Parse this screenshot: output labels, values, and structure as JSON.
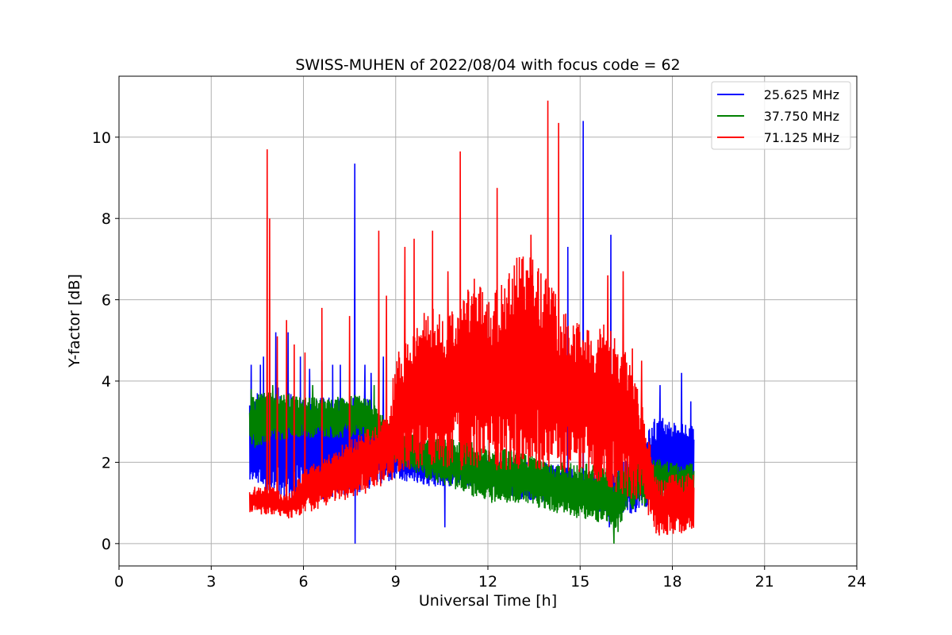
{
  "chart_data": {
    "type": "line",
    "title": "SWISS-MUHEN of 2022/08/04 with focus code = 62",
    "xlabel": "Universal Time [h]",
    "ylabel": "Y-factor [dB]",
    "xlim": [
      0,
      24
    ],
    "ylim": [
      -0.55,
      11.5
    ],
    "xticks": [
      0,
      3,
      6,
      9,
      12,
      15,
      18,
      21,
      24
    ],
    "yticks": [
      0,
      2,
      4,
      6,
      8,
      10
    ],
    "grid": true,
    "legend_position": "top-right",
    "time_range": [
      4.25,
      18.7
    ],
    "series": [
      {
        "name": "25.625 MHz",
        "color": "#0000ff",
        "lower": [
          [
            4.25,
            1.4
          ],
          [
            5,
            1.2
          ],
          [
            6,
            1.0
          ],
          [
            7,
            1.1
          ],
          [
            8,
            1.3
          ],
          [
            9,
            1.6
          ],
          [
            10,
            1.4
          ],
          [
            11,
            1.4
          ],
          [
            12,
            1.4
          ],
          [
            13,
            1.1
          ],
          [
            14,
            1.0
          ],
          [
            15,
            0.9
          ],
          [
            16,
            0.6
          ],
          [
            16.5,
            0.7
          ],
          [
            17,
            0.8
          ],
          [
            18,
            1.0
          ],
          [
            18.7,
            1.2
          ]
        ],
        "upper": [
          [
            4.25,
            3.5
          ],
          [
            5,
            3.9
          ],
          [
            6,
            3.6
          ],
          [
            7,
            3.6
          ],
          [
            8,
            3.7
          ],
          [
            9,
            2.6
          ],
          [
            10,
            2.5
          ],
          [
            11,
            2.3
          ],
          [
            12,
            2.1
          ],
          [
            13,
            2.0
          ],
          [
            14,
            2.0
          ],
          [
            15,
            1.8
          ],
          [
            16,
            1.7
          ],
          [
            17,
            2.5
          ],
          [
            17.5,
            3.2
          ],
          [
            18,
            3.0
          ],
          [
            18.7,
            3.0
          ]
        ],
        "spikes": [
          [
            4.3,
            4.4
          ],
          [
            4.5,
            3.7
          ],
          [
            4.6,
            4.4
          ],
          [
            4.7,
            4.6
          ],
          [
            5.1,
            5.2
          ],
          [
            5.5,
            5.2
          ],
          [
            5.9,
            4.6
          ],
          [
            6.2,
            4.3
          ],
          [
            6.6,
            4.5
          ],
          [
            6.95,
            4.4
          ],
          [
            7.2,
            4.4
          ],
          [
            7.67,
            9.35
          ],
          [
            7.68,
            0.0
          ],
          [
            8.0,
            4.4
          ],
          [
            8.2,
            4.2
          ],
          [
            8.6,
            4.6
          ],
          [
            10.6,
            0.4
          ],
          [
            14.6,
            7.3
          ],
          [
            15.1,
            10.4
          ],
          [
            15.95,
            0.4
          ],
          [
            16.0,
            7.6
          ],
          [
            17.6,
            3.9
          ],
          [
            18.3,
            4.2
          ],
          [
            18.6,
            3.5
          ]
        ]
      },
      {
        "name": "37.750 MHz",
        "color": "#008000",
        "lower": [
          [
            4.25,
            2.3
          ],
          [
            5,
            2.5
          ],
          [
            6,
            2.6
          ],
          [
            7,
            2.6
          ],
          [
            8,
            2.6
          ],
          [
            9,
            2.0
          ],
          [
            10,
            1.6
          ],
          [
            11,
            1.3
          ],
          [
            12,
            1.0
          ],
          [
            13,
            1.0
          ],
          [
            14,
            0.8
          ],
          [
            15,
            0.6
          ],
          [
            15.8,
            0.5
          ],
          [
            16.1,
            0.0
          ],
          [
            16.5,
            0.8
          ],
          [
            17,
            0.9
          ],
          [
            18,
            1.0
          ],
          [
            18.7,
            1.1
          ]
        ],
        "upper": [
          [
            4.25,
            3.6
          ],
          [
            5,
            3.8
          ],
          [
            6,
            3.6
          ],
          [
            7,
            3.6
          ],
          [
            8,
            3.7
          ],
          [
            9,
            2.8
          ],
          [
            10,
            2.6
          ],
          [
            11,
            2.6
          ],
          [
            12,
            2.4
          ],
          [
            13,
            2.3
          ],
          [
            14,
            2.0
          ],
          [
            15,
            2.0
          ],
          [
            16,
            1.9
          ],
          [
            17,
            2.2
          ],
          [
            18,
            2.0
          ],
          [
            18.7,
            2.0
          ]
        ],
        "spikes": [
          [
            4.3,
            3.8
          ],
          [
            5.0,
            3.9
          ],
          [
            6.3,
            3.9
          ],
          [
            8.3,
            3.9
          ],
          [
            16.1,
            0.0
          ]
        ]
      },
      {
        "name": "71.125 MHz",
        "color": "#ff0000",
        "lower": [
          [
            4.25,
            0.7
          ],
          [
            5,
            0.7
          ],
          [
            5.5,
            0.6
          ],
          [
            6,
            0.7
          ],
          [
            7,
            1.0
          ],
          [
            8,
            1.2
          ],
          [
            9,
            1.6
          ],
          [
            10,
            1.9
          ],
          [
            11,
            1.8
          ],
          [
            12,
            1.8
          ],
          [
            13,
            1.8
          ],
          [
            14,
            1.8
          ],
          [
            15,
            1.7
          ],
          [
            16,
            1.3
          ],
          [
            17,
            1.0
          ],
          [
            17.5,
            0.2
          ],
          [
            18,
            0.2
          ],
          [
            18.7,
            0.3
          ]
        ],
        "upper": [
          [
            4.25,
            1.4
          ],
          [
            5,
            1.4
          ],
          [
            5.5,
            1.2
          ],
          [
            6,
            1.8
          ],
          [
            7,
            2.3
          ],
          [
            8,
            2.8
          ],
          [
            8.8,
            3.2
          ],
          [
            9,
            4.8
          ],
          [
            9.5,
            5.0
          ],
          [
            10,
            6.0
          ],
          [
            10.5,
            5.6
          ],
          [
            11,
            6.1
          ],
          [
            11.5,
            6.7
          ],
          [
            12,
            6.0
          ],
          [
            12.5,
            6.6
          ],
          [
            13,
            7.2
          ],
          [
            13.5,
            7.0
          ],
          [
            14,
            6.4
          ],
          [
            14.5,
            5.8
          ],
          [
            15,
            5.4
          ],
          [
            15.5,
            5.4
          ],
          [
            16,
            5.4
          ],
          [
            16.5,
            4.8
          ],
          [
            17,
            3.5
          ],
          [
            17.5,
            1.6
          ],
          [
            18,
            1.7
          ],
          [
            18.7,
            1.8
          ]
        ],
        "spikes": [
          [
            4.82,
            9.7
          ],
          [
            4.9,
            8.0
          ],
          [
            5.15,
            5.1
          ],
          [
            5.45,
            5.5
          ],
          [
            5.7,
            4.9
          ],
          [
            6.05,
            4.7
          ],
          [
            6.6,
            5.8
          ],
          [
            7.5,
            5.6
          ],
          [
            8.45,
            7.7
          ],
          [
            8.7,
            6.1
          ],
          [
            9.3,
            7.3
          ],
          [
            9.6,
            7.5
          ],
          [
            10.2,
            7.7
          ],
          [
            10.7,
            6.7
          ],
          [
            11.1,
            9.65
          ],
          [
            12.3,
            8.75
          ],
          [
            13.4,
            7.6
          ],
          [
            13.95,
            10.9
          ],
          [
            14.3,
            10.35
          ],
          [
            15.9,
            6.6
          ],
          [
            16.4,
            6.7
          ],
          [
            16.7,
            4.8
          ],
          [
            17.0,
            4.5
          ]
        ]
      }
    ]
  }
}
